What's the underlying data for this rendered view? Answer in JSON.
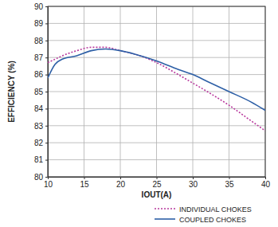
{
  "chart_data": {
    "type": "line",
    "x_label": "IOUT(A)",
    "y_label": "EFFICIENCY (%)",
    "x": [
      10,
      11,
      12,
      14,
      16,
      18,
      20,
      22,
      25,
      28,
      30,
      32,
      35,
      38,
      40
    ],
    "series": [
      {
        "name": "INDIVIDUAL CHOKES",
        "color": "#b8399d",
        "line_style": "dotted",
        "values": [
          86.7,
          86.9,
          87.1,
          87.4,
          87.6,
          87.6,
          87.4,
          87.2,
          86.7,
          86.0,
          85.5,
          85.0,
          84.2,
          83.3,
          82.7
        ]
      },
      {
        "name": "COUPLED CHOKES",
        "color": "#2d5fa6",
        "line_style": "solid",
        "values": [
          85.8,
          86.6,
          86.9,
          87.1,
          87.4,
          87.5,
          87.4,
          87.2,
          86.8,
          86.3,
          86.0,
          85.6,
          85.0,
          84.4,
          83.9
        ]
      }
    ],
    "xlim": [
      10,
      40
    ],
    "xticks": [
      10,
      15,
      20,
      25,
      30,
      35,
      40
    ],
    "ylim": [
      80,
      90
    ],
    "yticks": [
      80,
      81,
      82,
      83,
      84,
      85,
      86,
      87,
      88,
      89,
      90
    ],
    "grid": true,
    "legend": "bottom"
  }
}
